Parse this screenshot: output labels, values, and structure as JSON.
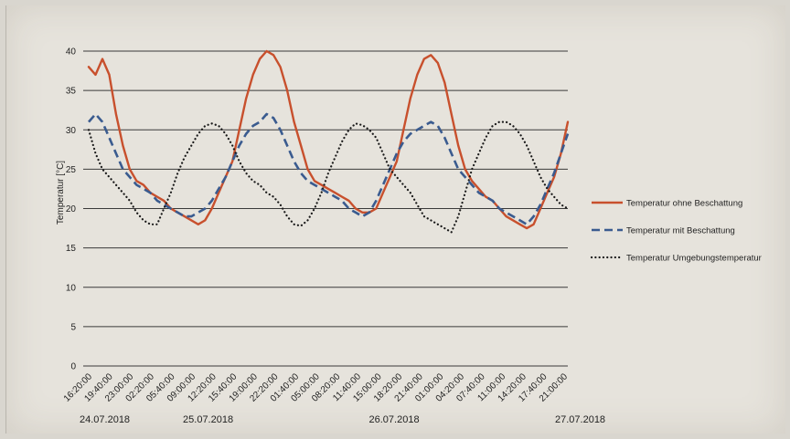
{
  "chart_data": {
    "type": "line",
    "title": "",
    "xlabel": "",
    "ylabel": "Temperatur [°C]",
    "ylim": [
      0,
      40
    ],
    "yticks": [
      0,
      5,
      10,
      15,
      20,
      25,
      30,
      35,
      40
    ],
    "grid": true,
    "legend_position": "right",
    "x_tick_labels": [
      "16:20:00",
      "19:40:00",
      "23:00:00",
      "02:20:00",
      "05:40:00",
      "09:00:00",
      "12:20:00",
      "15:40:00",
      "19:00:00",
      "22:20:00",
      "01:40:00",
      "05:00:00",
      "08:20:00",
      "11:40:00",
      "15:00:00",
      "18:20:00",
      "21:40:00",
      "01:00:00",
      "04:20:00",
      "07:40:00",
      "11:00:00",
      "14:20:00",
      "17:40:00",
      "21:00:00"
    ],
    "date_labels": [
      {
        "label": "24.07.2018",
        "tick_index": 0
      },
      {
        "label": "25.07.2018",
        "tick_index": 5
      },
      {
        "label": "26.07.2018",
        "tick_index": 14
      },
      {
        "label": "27.07.2018",
        "tick_index": 23
      }
    ],
    "x_index_range": [
      0,
      70
    ],
    "series": [
      {
        "name": "Temperatur ohne Beschattung",
        "color": "#c8502d",
        "style": "solid",
        "x": [
          0,
          1,
          2,
          3,
          4,
          5,
          6,
          7,
          8,
          9,
          10,
          11,
          12,
          13,
          14,
          15,
          16,
          17,
          18,
          19,
          20,
          21,
          22,
          23,
          24,
          25,
          26,
          27,
          28,
          29,
          30,
          31,
          32,
          33,
          34,
          35,
          36,
          37,
          38,
          39,
          40,
          41,
          42,
          43,
          44,
          45,
          46,
          47,
          48,
          49,
          50,
          51,
          52,
          53,
          54,
          55,
          56,
          57,
          58,
          59,
          60,
          61,
          62,
          63,
          64,
          65,
          66,
          67,
          68,
          69,
          70
        ],
        "y": [
          38,
          37,
          39,
          37,
          32,
          28,
          25,
          23.5,
          23,
          22,
          21.5,
          21,
          20,
          19.5,
          19,
          18.5,
          18,
          18.5,
          20,
          22,
          24,
          26,
          30,
          34,
          37,
          39,
          40,
          39.5,
          38,
          35,
          31,
          28,
          25,
          23.5,
          23,
          22.5,
          22,
          21.5,
          21,
          20,
          19.5,
          19.5,
          20,
          22,
          24,
          26,
          30,
          34,
          37,
          39,
          39.5,
          38.5,
          36,
          32,
          28,
          25,
          23.5,
          22.5,
          21.5,
          21,
          20,
          19,
          18.5,
          18,
          17.5,
          18,
          20,
          22,
          24,
          27,
          31
        ]
      },
      {
        "name": "Temperatur mit Beschattung",
        "color": "#3a5b8f",
        "style": "dash",
        "x": [
          0,
          1,
          2,
          3,
          4,
          5,
          6,
          7,
          8,
          9,
          10,
          11,
          12,
          13,
          14,
          15,
          16,
          17,
          18,
          19,
          20,
          21,
          22,
          23,
          24,
          25,
          26,
          27,
          28,
          29,
          30,
          31,
          32,
          33,
          34,
          35,
          36,
          37,
          38,
          39,
          40,
          41,
          42,
          43,
          44,
          45,
          46,
          47,
          48,
          49,
          50,
          51,
          52,
          53,
          54,
          55,
          56,
          57,
          58,
          59,
          60,
          61,
          62,
          63,
          64,
          65,
          66,
          67,
          68,
          69,
          70
        ],
        "y": [
          31,
          32,
          31,
          29,
          27,
          25,
          24,
          23,
          22.5,
          22,
          21,
          20.5,
          20,
          19.5,
          19,
          19,
          19.5,
          20,
          21,
          22.5,
          24,
          26,
          28,
          29.5,
          30.5,
          31,
          32,
          31.5,
          30,
          28,
          26,
          24.5,
          23.5,
          23,
          22.5,
          22,
          21.5,
          21,
          20,
          19.5,
          19,
          19.5,
          21,
          23,
          25,
          27,
          28.5,
          29.5,
          30,
          30.5,
          31,
          30.5,
          29,
          27,
          25,
          24,
          23,
          22,
          21.5,
          21,
          20,
          19.5,
          19,
          18.5,
          18,
          19,
          20.5,
          22.5,
          24.5,
          27,
          29.5
        ]
      },
      {
        "name": "Temperatur Umgebungstemperatur",
        "color": "#1a1a1a",
        "style": "dot",
        "x": [
          0,
          1,
          2,
          3,
          4,
          5,
          6,
          7,
          8,
          9,
          10,
          11,
          12,
          13,
          14,
          15,
          16,
          17,
          18,
          19,
          20,
          21,
          22,
          23,
          24,
          25,
          26,
          27,
          28,
          29,
          30,
          31,
          32,
          33,
          34,
          35,
          36,
          37,
          38,
          39,
          40,
          41,
          42,
          43,
          44,
          45,
          46,
          47,
          48,
          49,
          50,
          51,
          52,
          53,
          54,
          55,
          56,
          57,
          58,
          59,
          60,
          61,
          62,
          63,
          64,
          65,
          66,
          67,
          68,
          69,
          70
        ],
        "y": [
          30,
          27,
          25,
          24,
          23,
          22,
          21,
          19.5,
          18.5,
          18,
          18,
          20,
          22,
          24.5,
          26.5,
          28,
          29.5,
          30.5,
          30.8,
          30.5,
          29.5,
          28,
          26,
          24.5,
          23.5,
          23,
          22,
          21.5,
          20.5,
          19,
          18,
          17.8,
          18.5,
          20,
          22,
          24.5,
          26.5,
          28.5,
          30,
          30.8,
          30.6,
          30,
          29,
          27,
          25,
          24,
          23,
          22,
          20.5,
          19,
          18.5,
          18,
          17.5,
          17,
          19,
          22,
          25,
          27,
          29,
          30.5,
          31,
          31,
          30.5,
          29.5,
          28,
          26,
          24,
          22.5,
          21.5,
          20.5,
          20
        ]
      }
    ]
  }
}
